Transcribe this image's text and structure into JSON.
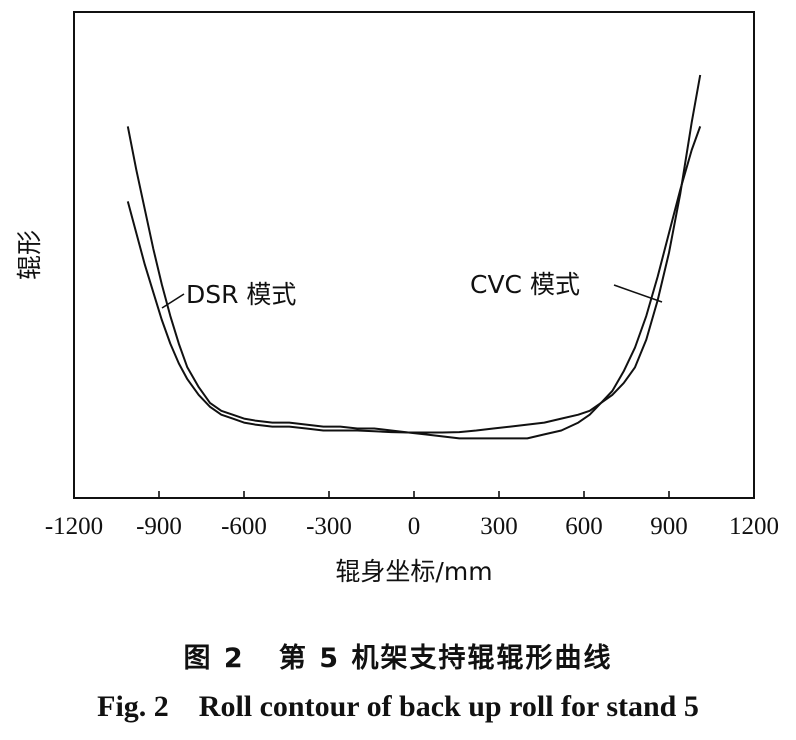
{
  "chart_data": {
    "type": "line",
    "xlabel": "辊身坐标/mm",
    "ylabel": "辊形",
    "xlim": [
      -1200,
      1200
    ],
    "ylim": [
      0,
      100
    ],
    "x_ticks": [
      -1200,
      -900,
      -600,
      -300,
      0,
      300,
      600,
      900,
      1200
    ],
    "y_ticks_shown": false,
    "grid": false,
    "legend": "inline labels with leader lines",
    "series": [
      {
        "name": "DSR 模式",
        "x": [
          -1010,
          -980,
          -950,
          -920,
          -890,
          -860,
          -830,
          -800,
          -760,
          -720,
          -680,
          -640,
          -600,
          -560,
          -500,
          -440,
          -380,
          -320,
          -260,
          -200,
          -140,
          -80,
          -20,
          40,
          100,
          160,
          220,
          280,
          340,
          400,
          460,
          520,
          580,
          620,
          660,
          700,
          740,
          780,
          820,
          860,
          900,
          940,
          980,
          1010
        ],
        "y": [
          68,
          60,
          52,
          45,
          38,
          32,
          27,
          23,
          19,
          16,
          14,
          13,
          12,
          11.5,
          11,
          11,
          10.5,
          10,
          10,
          10,
          9.8,
          9.6,
          9.5,
          9.5,
          9.5,
          9.6,
          10,
          10.5,
          11,
          11.5,
          12,
          13,
          14,
          15,
          17,
          19,
          22,
          26,
          33,
          43,
          55,
          70,
          88,
          100
        ]
      },
      {
        "name": "CVC 模式",
        "x": [
          -1010,
          -980,
          -950,
          -920,
          -890,
          -860,
          -830,
          -800,
          -760,
          -720,
          -680,
          -640,
          -600,
          -560,
          -500,
          -440,
          -380,
          -320,
          -260,
          -200,
          -140,
          -80,
          -20,
          40,
          100,
          160,
          220,
          280,
          340,
          400,
          460,
          520,
          580,
          620,
          660,
          700,
          740,
          780,
          820,
          860,
          900,
          940,
          980,
          1010
        ],
        "y": [
          87,
          76,
          66,
          56,
          47,
          39,
          32,
          26,
          21,
          17,
          15,
          14,
          13,
          12.5,
          12,
          12,
          11.5,
          11,
          11,
          10.5,
          10.5,
          10,
          9.5,
          9,
          8.5,
          8,
          8,
          8,
          8,
          8,
          9,
          10,
          12,
          14,
          17,
          20,
          25,
          31,
          39,
          49,
          60,
          71,
          81,
          87
        ]
      }
    ]
  },
  "caption": {
    "cn": "图 2   第 5 机架支持辊辊形曲线",
    "en": "Fig. 2    Roll contour of back up roll for stand 5"
  }
}
